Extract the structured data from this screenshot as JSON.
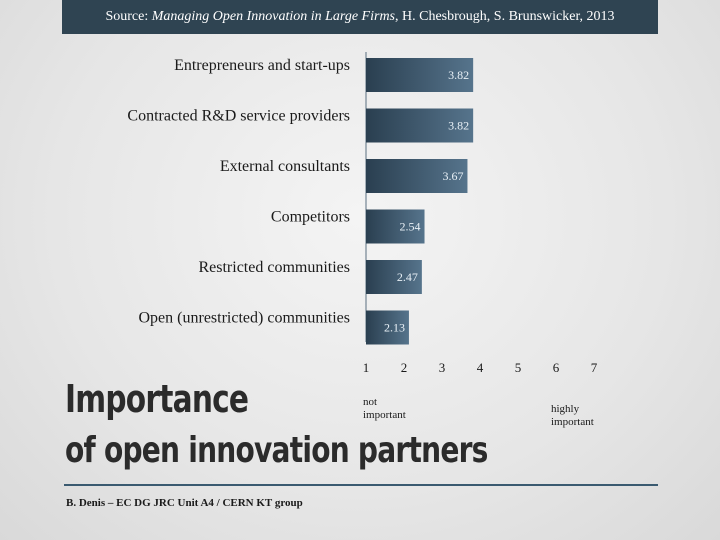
{
  "source": {
    "prefix": "Source: ",
    "work": "Managing Open Innovation in Large Firms",
    "suffix": ", H. Chesbrough, S. Brunswicker, 2013"
  },
  "title_line1": "Importance",
  "title_line2": "of open innovation partners",
  "footer": "B. Denis – EC DG JRC Unit A4 / CERN KT group",
  "axis_end_labels": {
    "left": [
      "not",
      "important"
    ],
    "right": [
      "highly",
      "important"
    ]
  },
  "colors": {
    "bar_dark": "#2a3f50",
    "bar_light": "#56748c",
    "source_bar": "#2f4452"
  },
  "chart_data": {
    "type": "bar",
    "orientation": "horizontal",
    "categories": [
      "Entrepreneurs and start-ups",
      "Contracted R&D service providers",
      "External consultants",
      "Competitors",
      "Restricted communities",
      "Open (unrestricted) communities"
    ],
    "values": [
      3.82,
      3.82,
      3.67,
      2.54,
      2.47,
      2.13
    ],
    "value_labels": [
      "3.82",
      "3.82",
      "3.67",
      "2.54",
      "2.47",
      "2.13"
    ],
    "xlim": [
      1,
      7
    ],
    "ticks": [
      "1",
      "2",
      "3",
      "4",
      "5",
      "6",
      "7"
    ],
    "grid": false
  }
}
